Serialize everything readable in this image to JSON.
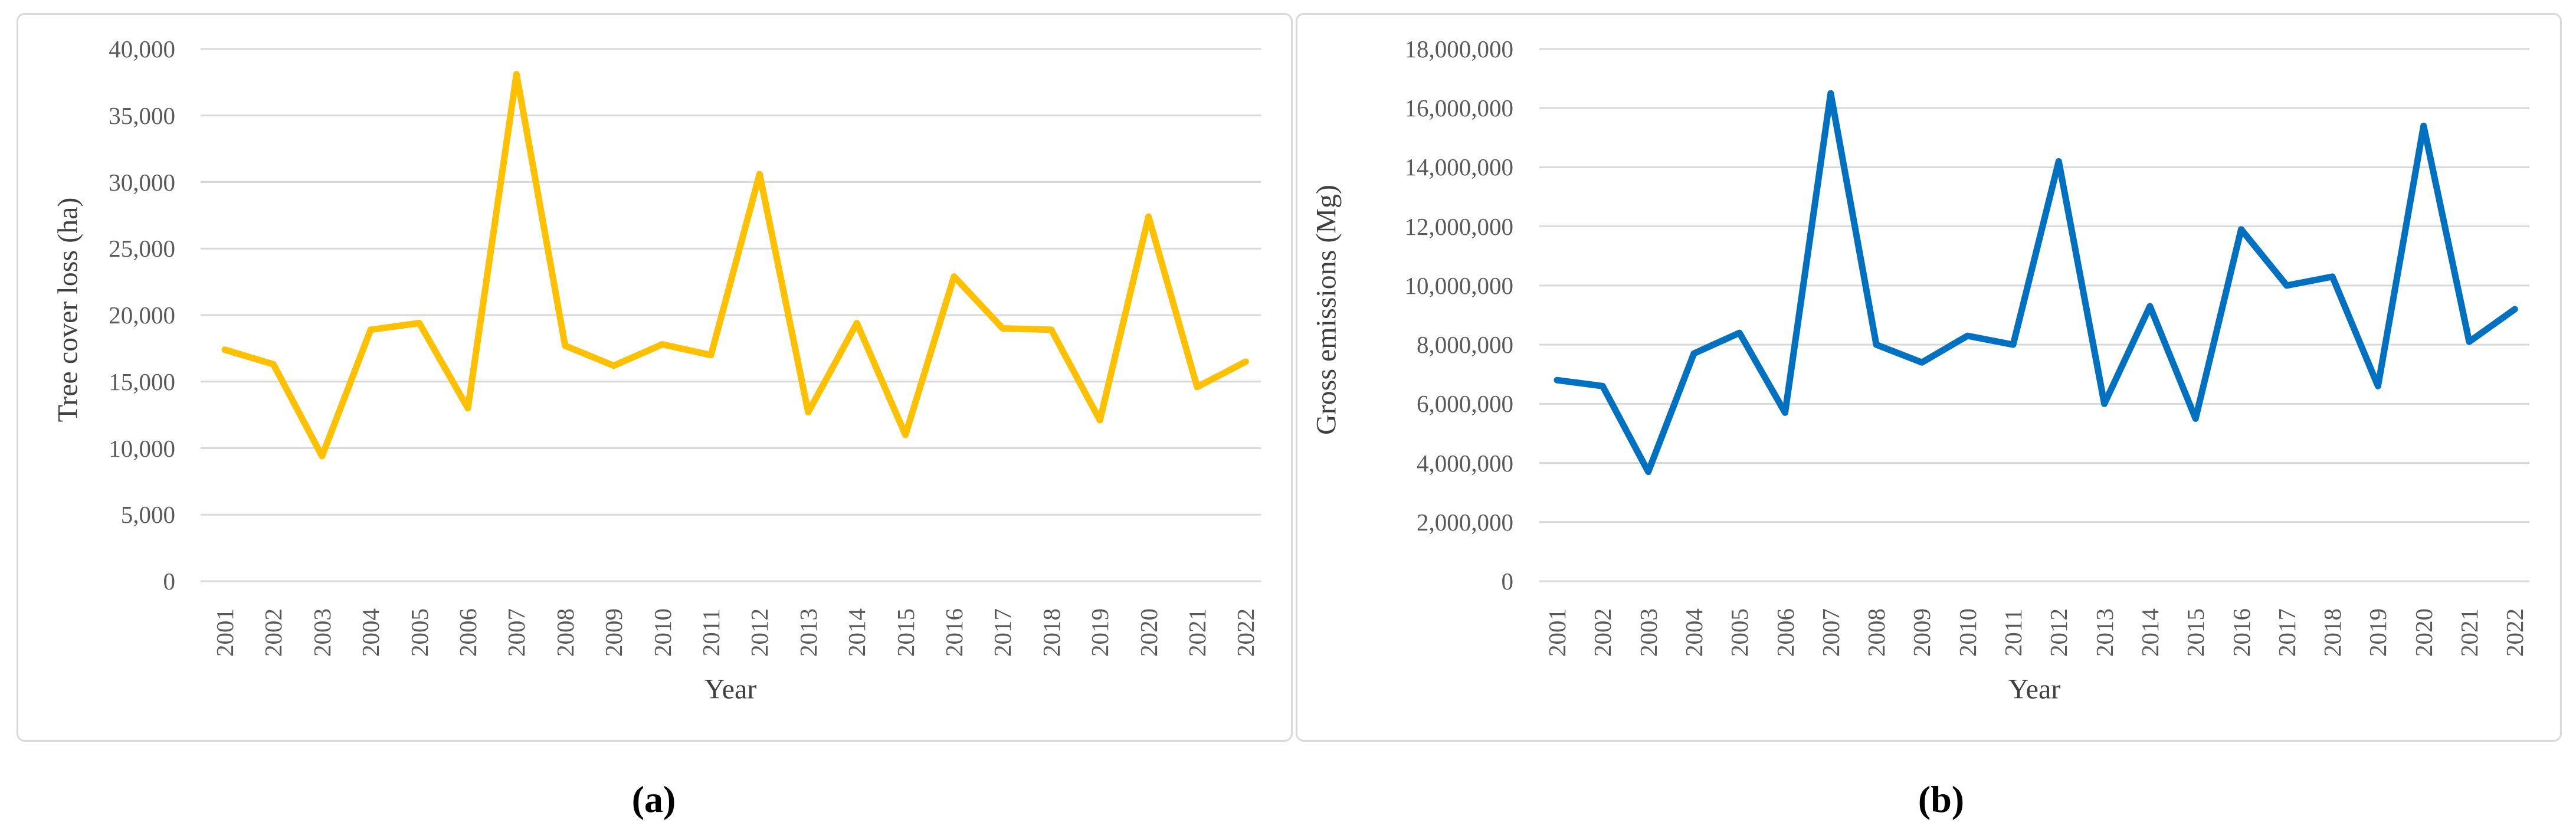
{
  "figure": {
    "gridline_color": "#d9d9d9",
    "axis_line_color": "#d9d9d9",
    "tick_text_color": "#595959",
    "axis_title_color": "#404040",
    "panel_border_color": "#d9d9d9",
    "background_color": "#ffffff"
  },
  "chart_data": [
    {
      "type": "line",
      "panel": "a",
      "caption": "(a)",
      "xlabel": "Year",
      "ylabel": "Tree cover loss (ha)",
      "line_color": "#FFC000",
      "grid": true,
      "legend": false,
      "ylim": [
        0,
        40000
      ],
      "ytick_step": 5000,
      "ytick_labels": [
        "40,000",
        "35,000",
        "30,000",
        "25,000",
        "20,000",
        "15,000",
        "10,000",
        "5,000",
        "0"
      ],
      "x": [
        "2001",
        "2002",
        "2003",
        "2004",
        "2005",
        "2006",
        "2007",
        "2008",
        "2009",
        "2010",
        "2011",
        "2012",
        "2013",
        "2014",
        "2015",
        "2016",
        "2017",
        "2018",
        "2019",
        "2020",
        "2021",
        "2022"
      ],
      "series": [
        {
          "name": "Tree cover loss (ha)",
          "values": [
            17400,
            16300,
            9400,
            18900,
            19400,
            13000,
            38100,
            17700,
            16200,
            17800,
            17000,
            30600,
            12700,
            19400,
            11000,
            22900,
            19000,
            18900,
            12100,
            27400,
            14600,
            16500
          ]
        }
      ]
    },
    {
      "type": "line",
      "panel": "b",
      "caption": "(b)",
      "xlabel": "Year",
      "ylabel": "Gross emissions (Mg)",
      "line_color": "#0070C0",
      "grid": true,
      "legend": false,
      "ylim": [
        0,
        18000000
      ],
      "ytick_step": 2000000,
      "ytick_labels": [
        "18,000,000",
        "16,000,000",
        "14,000,000",
        "12,000,000",
        "10,000,000",
        "8,000,000",
        "6,000,000",
        "4,000,000",
        "2,000,000",
        "0"
      ],
      "x": [
        "2001",
        "2002",
        "2003",
        "2004",
        "2005",
        "2006",
        "2007",
        "2008",
        "2009",
        "2010",
        "2011",
        "2012",
        "2013",
        "2014",
        "2015",
        "2016",
        "2017",
        "2018",
        "2019",
        "2020",
        "2021",
        "2022"
      ],
      "series": [
        {
          "name": "Gross emissions (Mg)",
          "values": [
            6800000,
            6600000,
            3700000,
            7700000,
            8400000,
            5700000,
            16500000,
            8000000,
            7400000,
            8300000,
            8000000,
            14200000,
            6000000,
            9300000,
            5500000,
            11900000,
            10000000,
            10300000,
            6600000,
            15400000,
            8100000,
            9200000
          ]
        }
      ]
    }
  ]
}
